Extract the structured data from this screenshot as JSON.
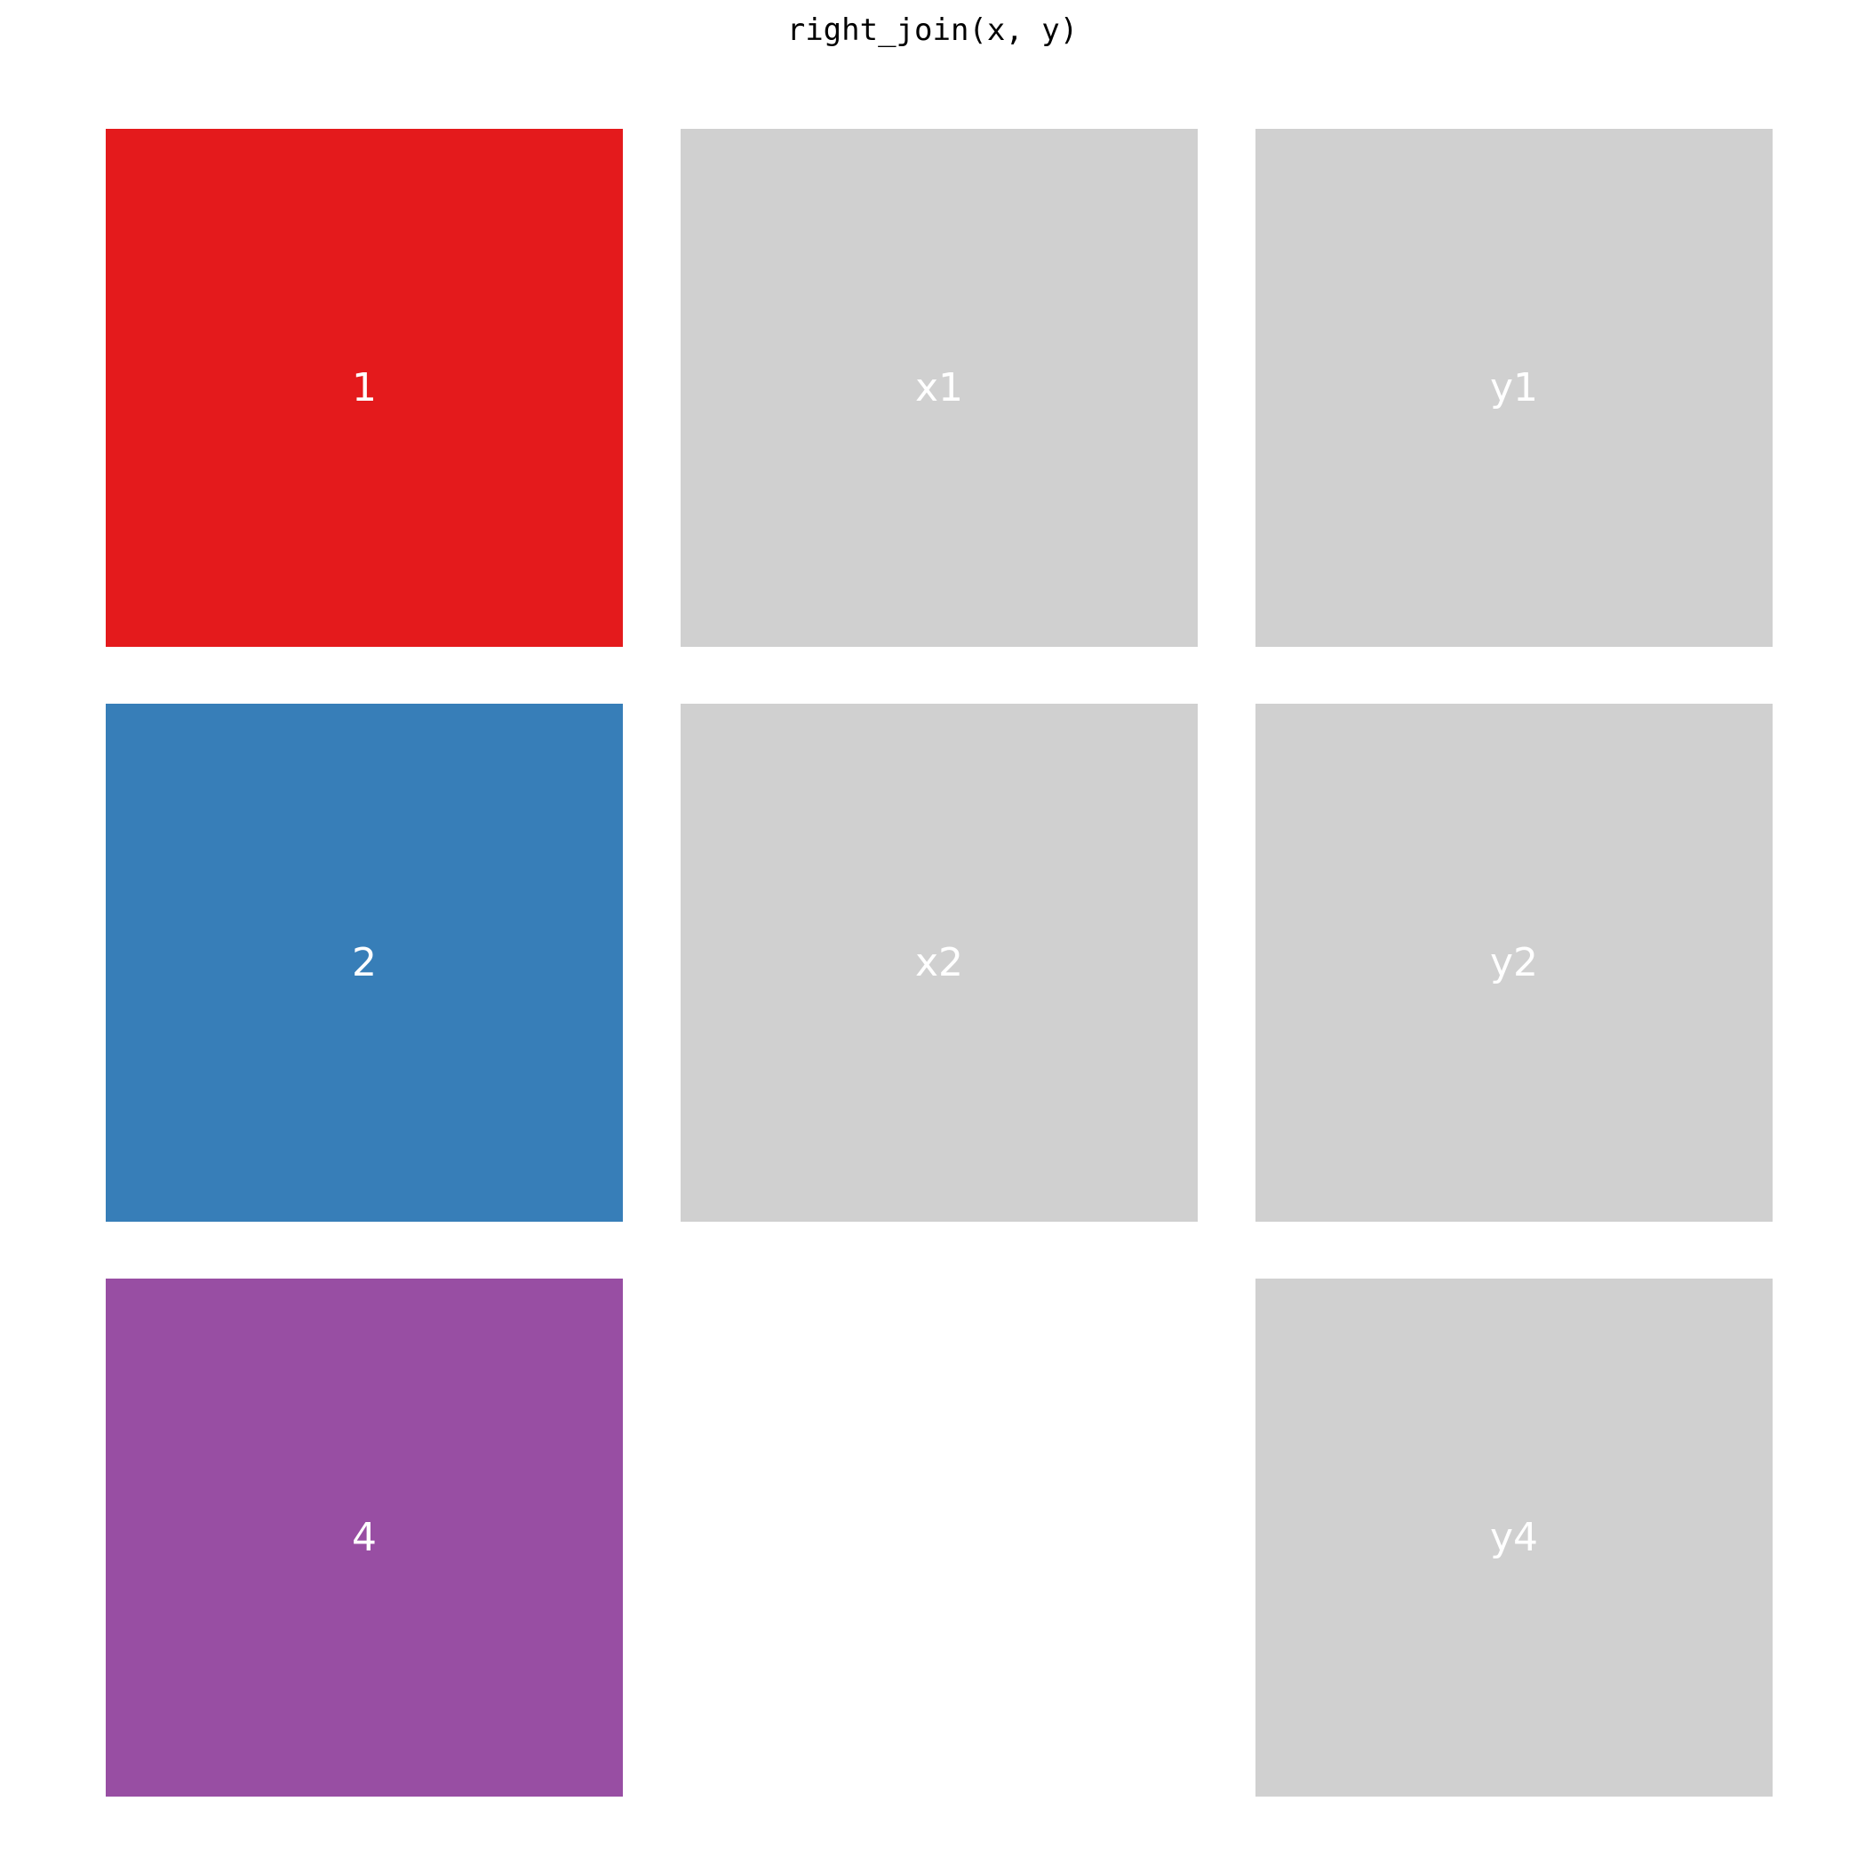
{
  "title": "right_join(x, y)",
  "colors": {
    "key_1": "#E41A1C",
    "key_2": "#377EB8",
    "key_4": "#984EA3",
    "value": "#D0D0D0",
    "label": "#FFFFFF"
  },
  "rows": [
    {
      "key": "1",
      "x": "x1",
      "y": "y1",
      "key_color": "#E41A1C"
    },
    {
      "key": "2",
      "x": "x2",
      "y": "y2",
      "key_color": "#377EB8"
    },
    {
      "key": "4",
      "x": "",
      "y": "y4",
      "key_color": "#984EA3"
    }
  ]
}
